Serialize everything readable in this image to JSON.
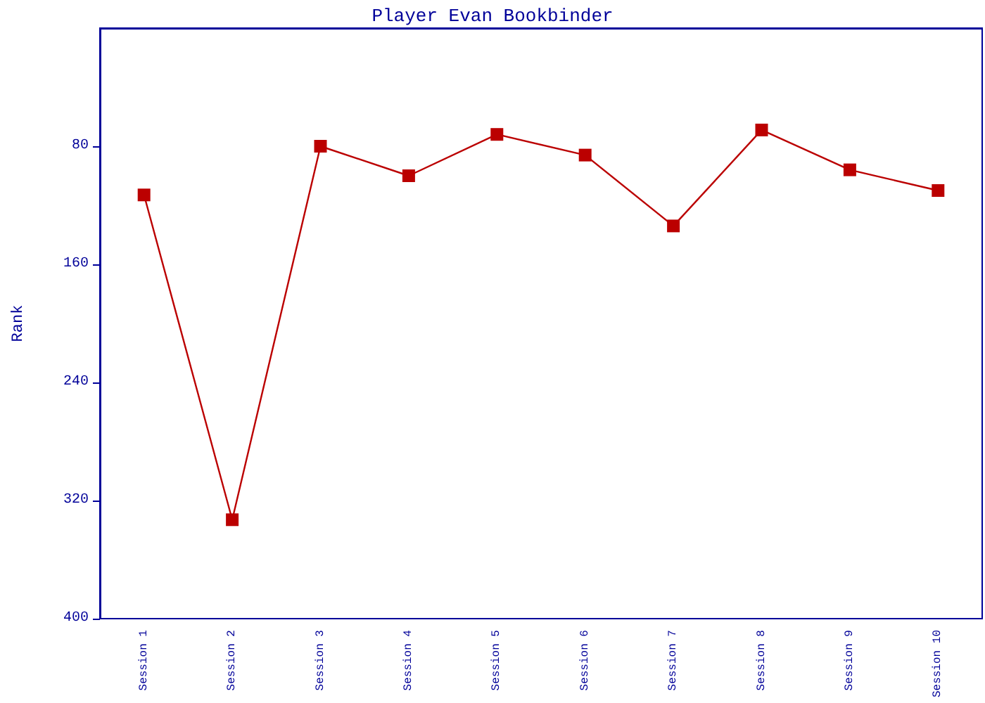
{
  "chart_data": {
    "type": "line",
    "title": "Player Evan Bookbinder",
    "ylabel": "Rank",
    "categories": [
      "Session 1",
      "Session 2",
      "Session 3",
      "Session 4",
      "Session 5",
      "Session 6",
      "Session 7",
      "Session 8",
      "Session 9",
      "Session 10"
    ],
    "series": [
      {
        "color": "#bb0000",
        "values": [
          113,
          333,
          80,
          100,
          72,
          86,
          134,
          69,
          96,
          110
        ]
      }
    ],
    "ylim": [
      400,
      0
    ],
    "yticks": [
      80,
      160,
      240,
      320,
      400
    ],
    "grid": false,
    "marker": "square",
    "line_style": "solid"
  }
}
